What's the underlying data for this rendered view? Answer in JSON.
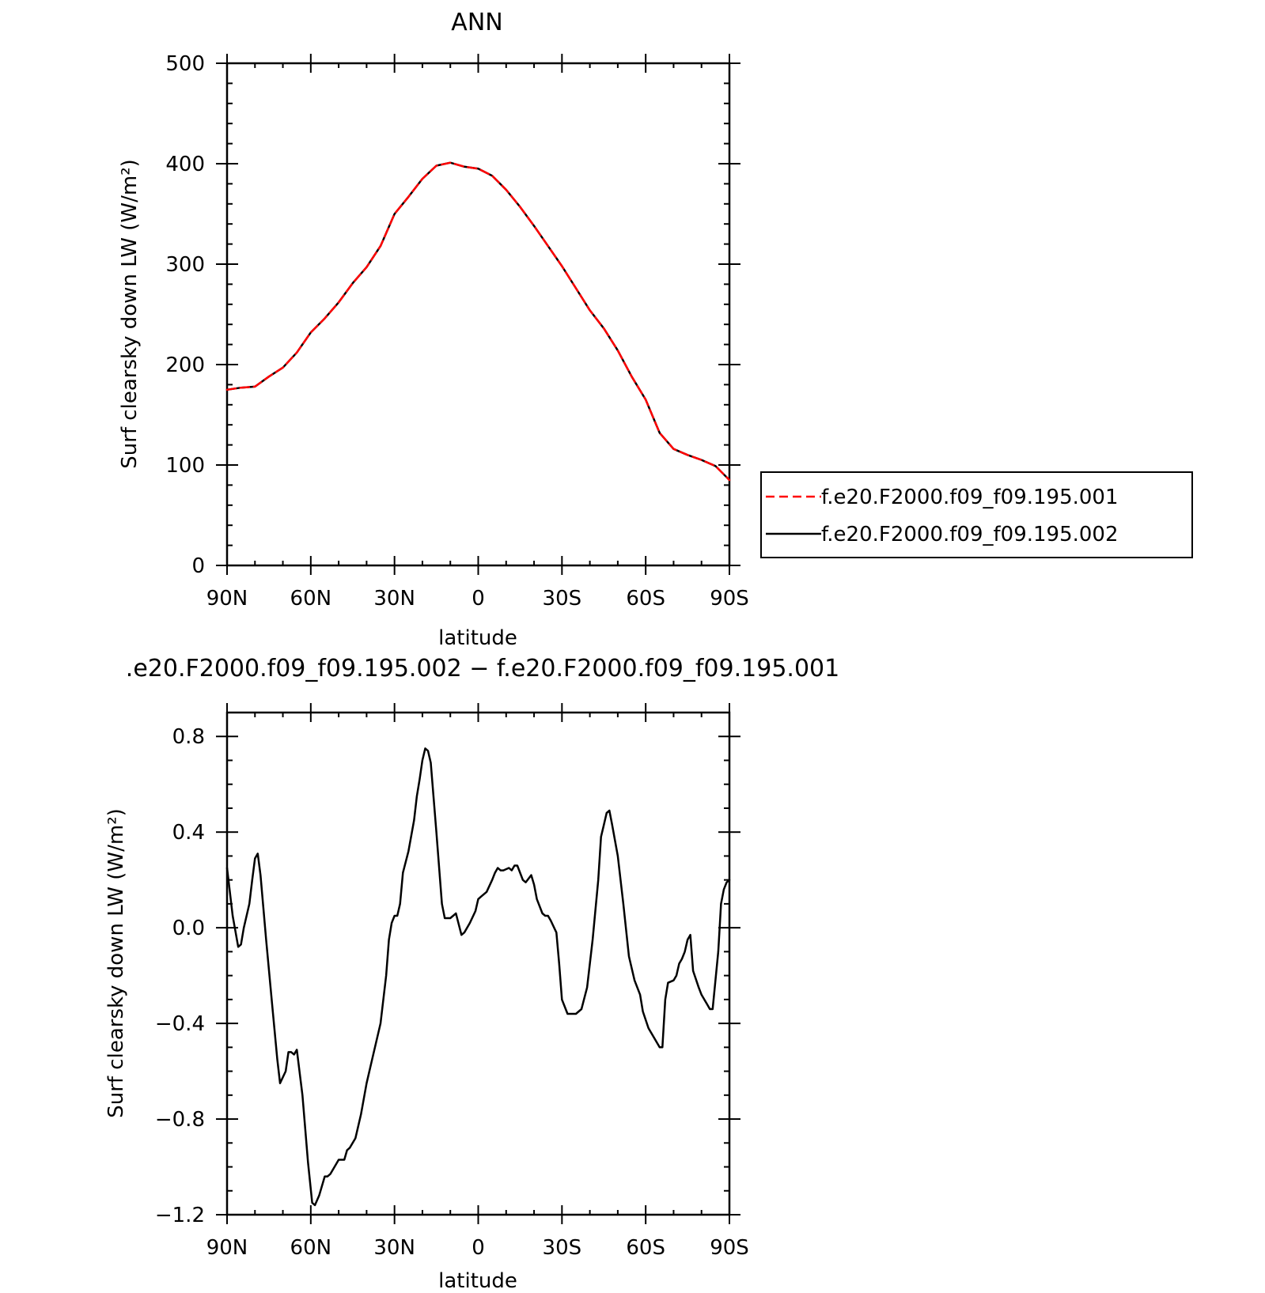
{
  "chart_data": [
    {
      "type": "line",
      "title": "ANN",
      "xlabel": "latitude",
      "ylabel": "Surf clearsky down LW (W/m²)",
      "xlim": [
        90,
        -90
      ],
      "ylim": [
        0,
        500
      ],
      "x_ticks": [
        90,
        60,
        30,
        0,
        -30,
        -60,
        -90
      ],
      "x_tick_labels": [
        "90N",
        "60N",
        "30N",
        "0",
        "30S",
        "60S",
        "90S"
      ],
      "y_ticks": [
        0,
        100,
        200,
        300,
        400,
        500
      ],
      "y_tick_labels": [
        "0",
        "100",
        "200",
        "300",
        "400",
        "500"
      ],
      "legend_position": "right",
      "series": [
        {
          "name": "f.e20.F2000.f09_f09.195.001",
          "color": "#ff0000",
          "style": "dashed",
          "x": [
            90,
            85,
            80,
            75,
            70,
            65,
            60,
            55,
            50,
            45,
            40,
            35,
            30,
            25,
            20,
            15,
            10,
            5,
            0,
            -5,
            -10,
            -15,
            -20,
            -25,
            -30,
            -35,
            -40,
            -45,
            -50,
            -55,
            -60,
            -65,
            -70,
            -75,
            -80,
            -85,
            -90
          ],
          "values": [
            175,
            177,
            178,
            188,
            197,
            212,
            232,
            246,
            262,
            281,
            297,
            318,
            350,
            367,
            385,
            398,
            401,
            397,
            395,
            388,
            374,
            357,
            338,
            318,
            298,
            276,
            254,
            236,
            214,
            188,
            165,
            132,
            116,
            110,
            105,
            99,
            85
          ]
        },
        {
          "name": "f.e20.F2000.f09_f09.195.002",
          "color": "#000000",
          "style": "solid",
          "x": [
            90,
            85,
            80,
            75,
            70,
            65,
            60,
            55,
            50,
            45,
            40,
            35,
            30,
            25,
            20,
            15,
            10,
            5,
            0,
            -5,
            -10,
            -15,
            -20,
            -25,
            -30,
            -35,
            -40,
            -45,
            -50,
            -55,
            -60,
            -65,
            -70,
            -75,
            -80,
            -85,
            -90
          ],
          "values": [
            175,
            177,
            178,
            188,
            197,
            212,
            232,
            246,
            262,
            281,
            297,
            318,
            350,
            367,
            385,
            398,
            401,
            397,
            395,
            388,
            374,
            357,
            338,
            318,
            298,
            276,
            254,
            236,
            214,
            188,
            165,
            132,
            116,
            110,
            105,
            99,
            85
          ]
        }
      ]
    },
    {
      "type": "line",
      "title": ".e20.F2000.f09_f09.195.002 − f.e20.F2000.f09_f09.195.001",
      "xlabel": "latitude",
      "ylabel": "Surf clearsky down LW (W/m²)",
      "xlim": [
        90,
        -90
      ],
      "ylim": [
        -1.2,
        0.9
      ],
      "x_ticks": [
        90,
        60,
        30,
        0,
        -30,
        -60,
        -90
      ],
      "x_tick_labels": [
        "90N",
        "60N",
        "30N",
        "0",
        "30S",
        "60S",
        "90S"
      ],
      "y_ticks": [
        -1.2,
        -0.8,
        -0.4,
        0.0,
        0.4,
        0.8
      ],
      "y_tick_labels": [
        "−1.2",
        "−0.8",
        "−0.4",
        "0.0",
        "0.4",
        "0.8"
      ],
      "series": [
        {
          "color": "#000000",
          "style": "solid",
          "x": [
            90,
            88,
            86,
            85,
            84,
            82,
            81,
            80,
            79,
            78,
            76,
            74,
            72,
            71,
            69,
            68,
            67,
            66,
            65,
            63,
            61,
            59.5,
            58.5,
            57,
            55,
            54,
            53,
            51,
            50,
            48,
            47,
            46,
            44,
            42,
            40,
            38,
            35,
            33,
            32,
            31,
            30,
            29,
            28,
            27,
            25,
            23,
            22,
            21,
            20,
            19,
            18,
            17,
            15,
            13,
            12,
            10,
            9,
            8,
            6,
            5,
            3,
            1,
            0,
            -1,
            -3,
            -5,
            -6,
            -7,
            -8,
            -9,
            -11,
            -12,
            -13,
            -14,
            -16,
            -17,
            -19,
            -20,
            -21,
            -23,
            -24,
            -25,
            -26,
            -28,
            -29,
            -30,
            -32,
            -33,
            -35,
            -37,
            -39,
            -41,
            -43,
            -44,
            -45,
            -46,
            -47,
            -48,
            -50,
            -52,
            -54,
            -56,
            -58,
            -59,
            -61,
            -63,
            -65,
            -66,
            -67,
            -68,
            -70,
            -71,
            -72,
            -73,
            -74,
            -75,
            -76,
            -77,
            -79,
            -80,
            -82,
            -83,
            -84,
            -86,
            -87,
            -88,
            -89,
            -90
          ],
          "values": [
            0.25,
            0.05,
            -0.08,
            -0.07,
            0.0,
            0.1,
            0.2,
            0.29,
            0.31,
            0.22,
            -0.05,
            -0.3,
            -0.55,
            -0.65,
            -0.6,
            -0.52,
            -0.52,
            -0.53,
            -0.51,
            -0.7,
            -0.98,
            -1.15,
            -1.16,
            -1.12,
            -1.04,
            -1.04,
            -1.03,
            -0.99,
            -0.97,
            -0.97,
            -0.93,
            -0.92,
            -0.88,
            -0.78,
            -0.65,
            -0.55,
            -0.4,
            -0.2,
            -0.05,
            0.02,
            0.05,
            0.05,
            0.1,
            0.23,
            0.32,
            0.45,
            0.55,
            0.62,
            0.7,
            0.75,
            0.74,
            0.69,
            0.4,
            0.1,
            0.04,
            0.04,
            0.05,
            0.06,
            -0.03,
            -0.02,
            0.02,
            0.07,
            0.12,
            0.13,
            0.15,
            0.2,
            0.23,
            0.25,
            0.24,
            0.24,
            0.25,
            0.24,
            0.26,
            0.26,
            0.2,
            0.19,
            0.22,
            0.18,
            0.12,
            0.06,
            0.05,
            0.05,
            0.03,
            -0.02,
            -0.15,
            -0.3,
            -0.36,
            -0.36,
            -0.36,
            -0.34,
            -0.25,
            -0.05,
            0.2,
            0.38,
            0.43,
            0.48,
            0.49,
            0.43,
            0.3,
            0.1,
            -0.12,
            -0.22,
            -0.28,
            -0.35,
            -0.42,
            -0.46,
            -0.5,
            -0.5,
            -0.3,
            -0.23,
            -0.22,
            -0.2,
            -0.15,
            -0.13,
            -0.1,
            -0.05,
            -0.03,
            -0.18,
            -0.25,
            -0.28,
            -0.32,
            -0.34,
            -0.34,
            -0.1,
            0.1,
            0.16,
            0.19,
            0.2
          ]
        }
      ]
    }
  ]
}
